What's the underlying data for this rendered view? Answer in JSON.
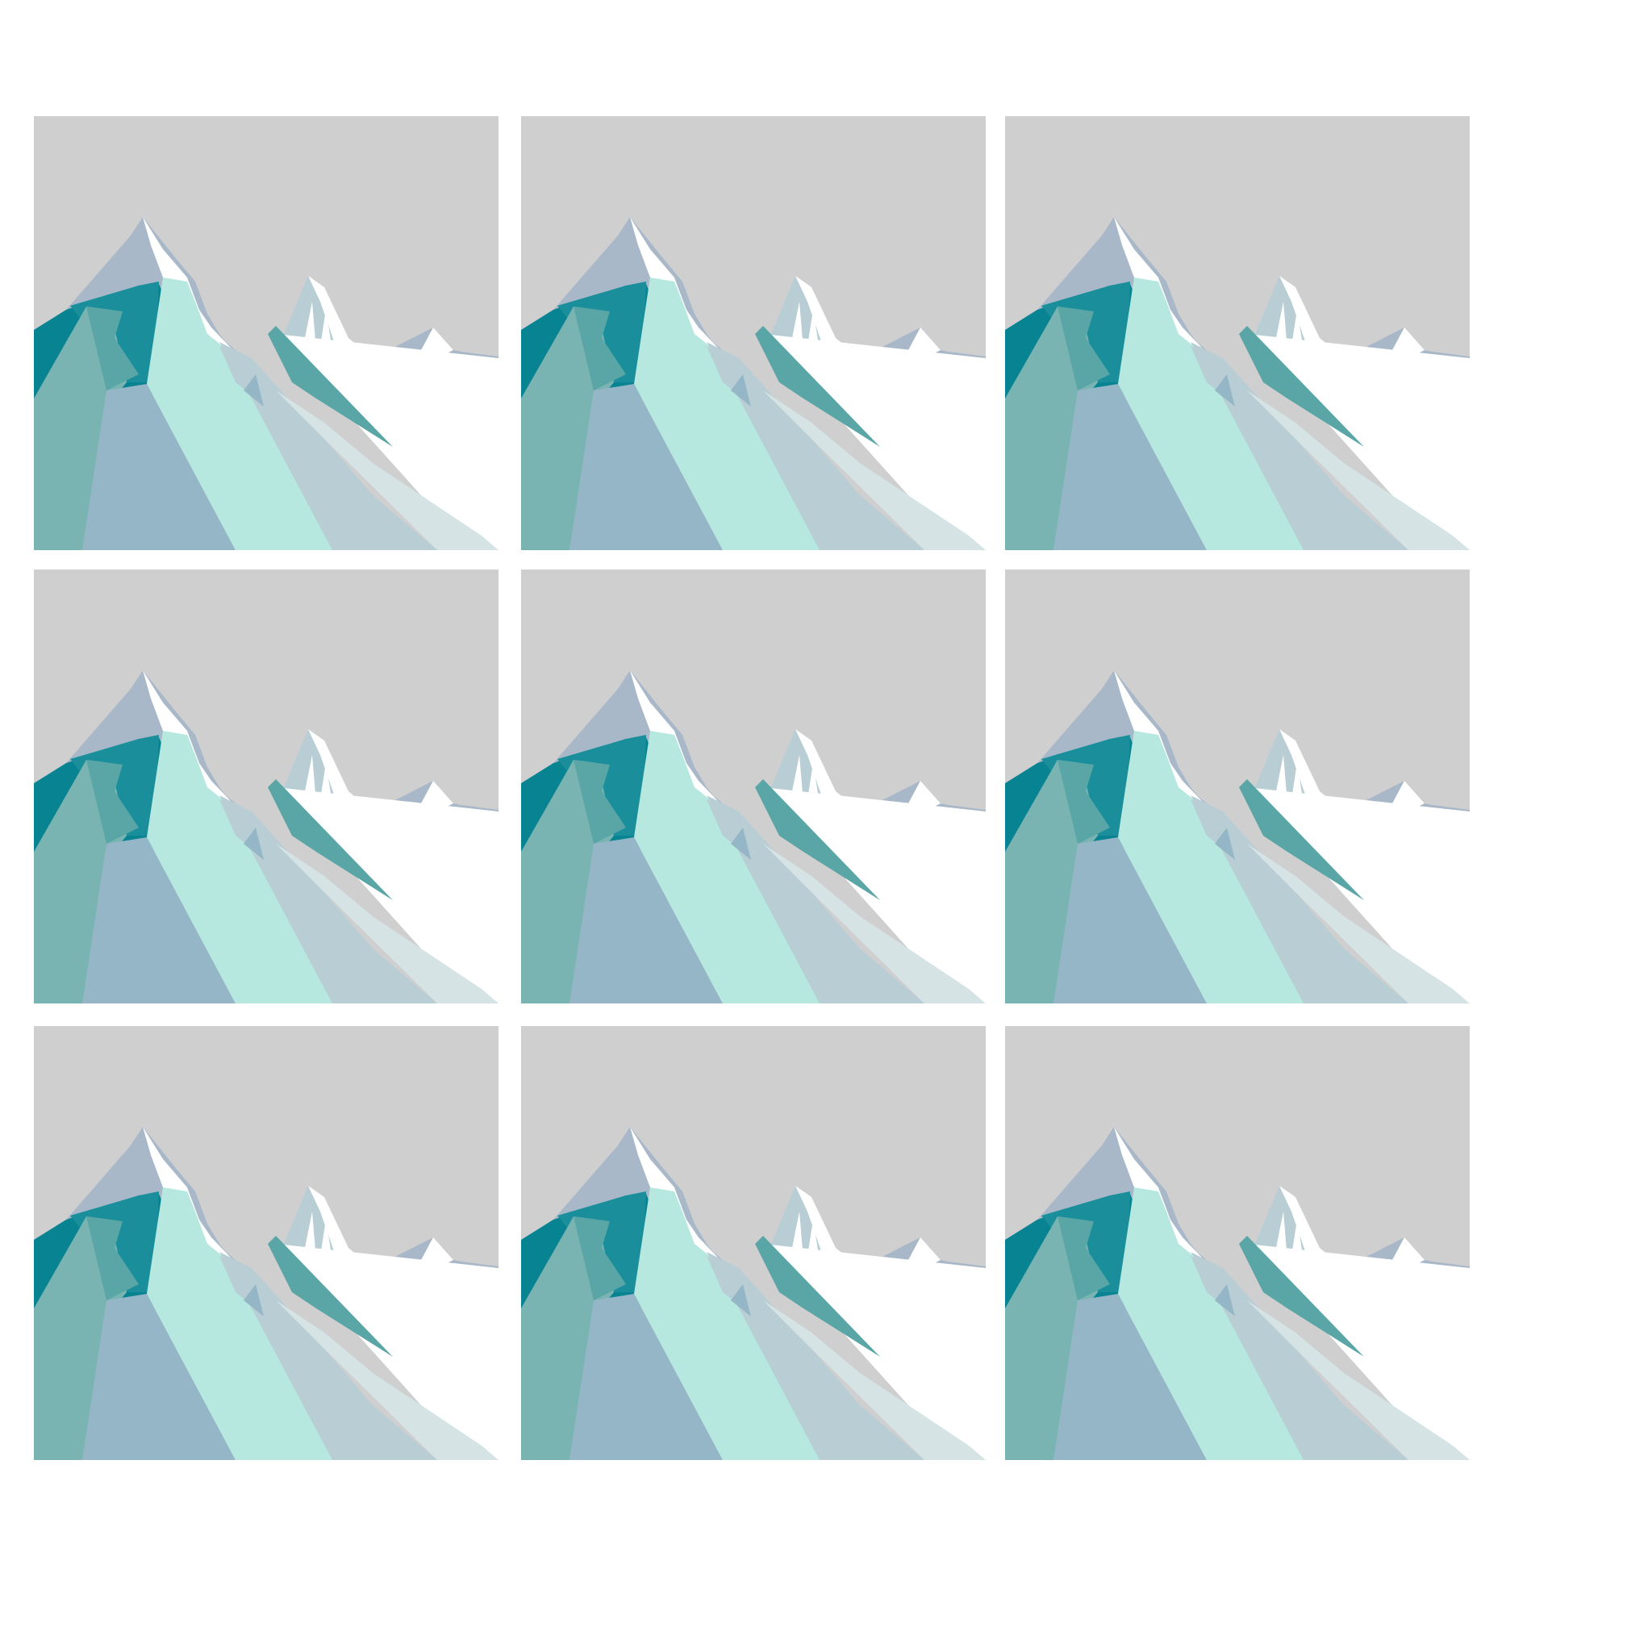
{
  "image": {
    "kind": "grid of identical low-poly mountain landscape illustrations",
    "rows": 3,
    "columns": 3,
    "tile_count": 9
  },
  "palette": {
    "sky": "#cfcfd0",
    "snow": "#ffffff",
    "dark_teal": "#088391",
    "teal": "#1a8f9b",
    "muted_teal": "#5aa6a7",
    "sage_teal": "#79b4b3",
    "blue_grey": "#95b6c6",
    "light_blue_grey": "#b8ced4",
    "pale_grey": "#d5e3e5",
    "mint": "#b6e8e0",
    "peak_grey": "#a8b8c8"
  }
}
